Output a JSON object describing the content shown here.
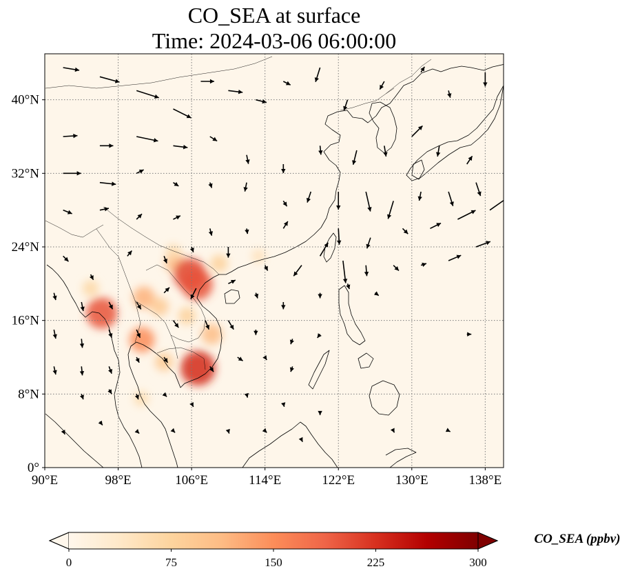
{
  "title": {
    "line1": "CO_SEA at surface",
    "line2": "Time: 2024-03-06 06:00:00"
  },
  "map": {
    "lon_range": [
      90,
      140
    ],
    "lat_range": [
      0,
      45
    ],
    "x_ticks": [
      "90°E",
      "98°E",
      "106°E",
      "114°E",
      "122°E",
      "130°E",
      "138°E"
    ],
    "x_tick_values": [
      90,
      98,
      106,
      114,
      122,
      130,
      138
    ],
    "y_ticks": [
      "0°",
      "8°N",
      "16°N",
      "24°N",
      "32°N",
      "40°N"
    ],
    "y_tick_values": [
      0,
      8,
      16,
      24,
      32,
      40
    ],
    "gridlines": true,
    "background_color": "#fef6ea"
  },
  "colorbar": {
    "label": "CO_SEA (ppbv)",
    "ticks": [
      "0",
      "75",
      "150",
      "225",
      "300"
    ],
    "tick_values": [
      0,
      75,
      150,
      225,
      300
    ],
    "range": [
      0,
      300
    ],
    "colormap": "OrRd",
    "extend": "both",
    "stops": [
      "#fff7ec",
      "#fee8c8",
      "#fdd49e",
      "#fdbb84",
      "#fc8d59",
      "#ef6548",
      "#d7301f",
      "#b30000",
      "#7f0000"
    ]
  },
  "hotspots": [
    {
      "lon": 104.2,
      "lat": 22.3,
      "value": 110
    },
    {
      "lon": 105.8,
      "lat": 21.0,
      "value": 210
    },
    {
      "lon": 106.6,
      "lat": 19.9,
      "value": 200
    },
    {
      "lon": 100.8,
      "lat": 18.5,
      "value": 120
    },
    {
      "lon": 102.5,
      "lat": 17.5,
      "value": 90
    },
    {
      "lon": 105.5,
      "lat": 16.5,
      "value": 80
    },
    {
      "lon": 96.2,
      "lat": 16.8,
      "value": 200
    },
    {
      "lon": 95.0,
      "lat": 19.5,
      "value": 70
    },
    {
      "lon": 100.6,
      "lat": 13.9,
      "value": 150
    },
    {
      "lon": 106.7,
      "lat": 10.8,
      "value": 230
    },
    {
      "lon": 108.2,
      "lat": 14.5,
      "value": 110
    },
    {
      "lon": 103.0,
      "lat": 11.5,
      "value": 90
    },
    {
      "lon": 100.5,
      "lat": 7.5,
      "value": 60
    },
    {
      "lon": 109.0,
      "lat": 22.2,
      "value": 80
    },
    {
      "lon": 113.3,
      "lat": 23.0,
      "value": 50
    },
    {
      "lon": 104.0,
      "lat": 23.5,
      "value": 60
    }
  ],
  "wind_vectors": [
    [
      92,
      43.5,
      1.8,
      -0.3
    ],
    [
      96,
      42.5,
      2.2,
      -0.6
    ],
    [
      100,
      41,
      2.5,
      -0.8
    ],
    [
      104,
      39,
      2.0,
      -1.0
    ],
    [
      107,
      42,
      1.5,
      0.0
    ],
    [
      110,
      41,
      1.6,
      -0.2
    ],
    [
      113,
      40,
      1.2,
      -0.3
    ],
    [
      116,
      42,
      0.8,
      -0.4
    ],
    [
      120,
      43.5,
      -0.5,
      -1.6
    ],
    [
      123,
      40,
      -0.4,
      -1.2
    ],
    [
      127,
      42,
      -0.5,
      -0.9
    ],
    [
      131,
      43,
      0.4,
      0.6
    ],
    [
      134,
      41,
      0.2,
      -0.8
    ],
    [
      138,
      43,
      0,
      -1.6
    ],
    [
      92,
      36,
      1.6,
      0.1
    ],
    [
      96,
      35,
      1.5,
      0.0
    ],
    [
      100,
      36,
      2.4,
      -0.5
    ],
    [
      104,
      35,
      1.6,
      -0.2
    ],
    [
      108,
      36,
      0.8,
      -0.5
    ],
    [
      112,
      34,
      0.2,
      -1.0
    ],
    [
      116,
      33,
      0,
      -1.0
    ],
    [
      120,
      35,
      0.1,
      -1.0
    ],
    [
      124,
      34.5,
      -0.4,
      -1.6
    ],
    [
      127,
      35,
      0.2,
      -1.2
    ],
    [
      130,
      36,
      1.2,
      1.2
    ],
    [
      133,
      35,
      -0.2,
      -1.2
    ],
    [
      136,
      33,
      0.6,
      0.9
    ],
    [
      92,
      32,
      2.0,
      0
    ],
    [
      96,
      31,
      1.8,
      -0.2
    ],
    [
      100,
      32,
      0.8,
      0.4
    ],
    [
      104,
      31,
      0.6,
      -0.4
    ],
    [
      108,
      31,
      0.2,
      -0.6
    ],
    [
      112,
      31,
      -0.2,
      -1.0
    ],
    [
      116,
      29,
      0.4,
      -0.6
    ],
    [
      119,
      30,
      -0.4,
      -1.2
    ],
    [
      122,
      30,
      0,
      -2.0
    ],
    [
      125,
      30,
      0.5,
      -2.2
    ],
    [
      128,
      29,
      -0.6,
      -2.0
    ],
    [
      131,
      30,
      -0.2,
      -1.0
    ],
    [
      134,
      30,
      0.5,
      -1.6
    ],
    [
      137,
      31,
      0.5,
      -1.5
    ],
    [
      92,
      28,
      1.0,
      -0.4
    ],
    [
      96,
      28,
      1.0,
      0.2
    ],
    [
      100,
      27,
      0.6,
      0.6
    ],
    [
      104,
      27,
      0.8,
      0.4
    ],
    [
      108,
      26,
      0.2,
      -0.8
    ],
    [
      112,
      26,
      0.1,
      -0.6
    ],
    [
      116,
      26,
      0.5,
      0.8
    ],
    [
      122,
      26,
      0.1,
      -1.8
    ],
    [
      125.5,
      25,
      -0.4,
      -1.2
    ],
    [
      129,
      26,
      0.6,
      -0.6
    ],
    [
      132,
      26,
      1.2,
      0.6
    ],
    [
      135,
      27,
      2.0,
      1.0
    ],
    [
      138.5,
      28,
      2.0,
      1.4
    ],
    [
      92,
      23,
      0.6,
      -0.6
    ],
    [
      95,
      21,
      0.3,
      -0.6
    ],
    [
      99,
      23,
      0.5,
      0.6
    ],
    [
      103,
      23,
      0.3,
      -0.8
    ],
    [
      106,
      24,
      0.2,
      -0.6
    ],
    [
      110,
      24,
      0,
      -1.2
    ],
    [
      114,
      22,
      0.3,
      -0.6
    ],
    [
      118,
      22,
      -0.9,
      -1.2
    ],
    [
      120,
      23,
      0.9,
      1.5
    ],
    [
      122.5,
      22.5,
      0.3,
      -2.5
    ],
    [
      125,
      22,
      0.1,
      -1.2
    ],
    [
      128,
      22,
      0.6,
      -0.6
    ],
    [
      131,
      22,
      0.6,
      0.2
    ],
    [
      134,
      22.5,
      1.4,
      0.6
    ],
    [
      137,
      24,
      1.6,
      0.6
    ],
    [
      91,
      19,
      0.2,
      -0.8
    ],
    [
      94,
      18,
      0.2,
      -1.0
    ],
    [
      97,
      18,
      0.4,
      -0.8
    ],
    [
      100,
      18,
      0.5,
      -0.8
    ],
    [
      103,
      19,
      0.6,
      0.6
    ],
    [
      106.5,
      19.5,
      -0.6,
      -1.2
    ],
    [
      110,
      20,
      0.8,
      0.4
    ],
    [
      113,
      19,
      0.2,
      -0.6
    ],
    [
      116,
      18,
      0,
      -0.8
    ],
    [
      120,
      19,
      0,
      -0.6
    ],
    [
      123,
      20,
      0.2,
      -0.6
    ],
    [
      126,
      19,
      0.4,
      -0.3
    ],
    [
      91,
      15,
      0.2,
      -1.0
    ],
    [
      94,
      14,
      0.1,
      -1.0
    ],
    [
      97,
      15,
      0.3,
      -0.9
    ],
    [
      100,
      15,
      0.4,
      -0.9
    ],
    [
      104,
      16,
      0.6,
      -0.8
    ],
    [
      107.5,
      16,
      0.4,
      -1.0
    ],
    [
      110,
      16,
      0.6,
      -1.0
    ],
    [
      113,
      15,
      0,
      -0.6
    ],
    [
      117,
      14,
      -0.2,
      -0.6
    ],
    [
      120,
      14.5,
      -0.3,
      -0.4
    ],
    [
      136,
      14.5,
      0.5,
      0
    ],
    [
      91,
      11,
      0.2,
      -0.9
    ],
    [
      94,
      11,
      0.1,
      -1.0
    ],
    [
      97,
      11,
      0.3,
      -0.8
    ],
    [
      100,
      12,
      0.3,
      -0.6
    ],
    [
      103,
      12,
      0.4,
      -0.6
    ],
    [
      108,
      11,
      0.4,
      -0.6
    ],
    [
      111,
      12,
      0.6,
      -0.4
    ],
    [
      114,
      12,
      0.2,
      -0.3
    ],
    [
      117,
      11,
      -0.2,
      -0.6
    ],
    [
      94,
      8,
      0.2,
      -0.6
    ],
    [
      97,
      8.5,
      0.3,
      -0.5
    ],
    [
      100,
      8,
      0.2,
      -0.6
    ],
    [
      103,
      8,
      0.3,
      -0.3
    ],
    [
      106,
      7,
      0.2,
      -0.4
    ],
    [
      112,
      8,
      0.1,
      -0.4
    ],
    [
      116,
      7,
      0.1,
      -0.4
    ],
    [
      120,
      6,
      0,
      -0.3
    ],
    [
      92,
      4,
      0.2,
      -0.4
    ],
    [
      96,
      5,
      0.3,
      -0.4
    ],
    [
      100,
      4,
      0.3,
      -0.3
    ],
    [
      104,
      4,
      0.2,
      -0.2
    ],
    [
      110,
      4,
      0.1,
      -0.3
    ],
    [
      114,
      4,
      0.2,
      -0.2
    ],
    [
      118,
      3,
      0.1,
      -0.2
    ],
    [
      128,
      4,
      0.1,
      -0.2
    ],
    [
      134,
      4,
      0.2,
      -0.1
    ]
  ],
  "coastline_color": "#000000",
  "arrow_color": "#000000"
}
